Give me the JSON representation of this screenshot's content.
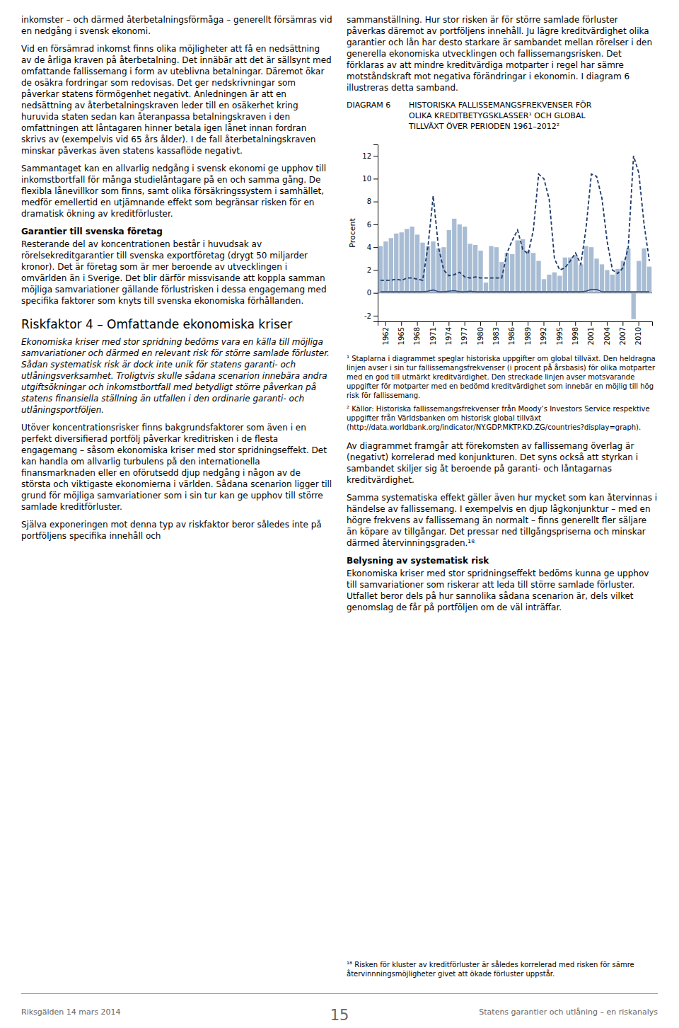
{
  "chart_data": {
    "type": "bar",
    "title": "DIAGRAM 6",
    "subtitle": [
      "HISTORISKA FALLISSEMANGSFREKVENSER FÖR",
      "OLIKA KREDITBETYGSKLASSER¹ OCH GLOBAL",
      "TILLVÄXT ÖVER PERIODEN 1961–2012²"
    ],
    "ylabel": "Procent",
    "categories": [
      null,
      "1962",
      null,
      null,
      "1965",
      null,
      null,
      "1968",
      null,
      null,
      "1971",
      null,
      null,
      "1974",
      null,
      null,
      "1977",
      null,
      null,
      "1980",
      null,
      null,
      "1983",
      null,
      null,
      "1986",
      null,
      null,
      "1989",
      null,
      null,
      "1992",
      null,
      null,
      "1995",
      null,
      null,
      "1998",
      null,
      null,
      "2001",
      null,
      null,
      "2004",
      null,
      null,
      "2007",
      null,
      null,
      "2010",
      null,
      null
    ],
    "series": [
      {
        "type": "bar",
        "color": "#a8bdd4",
        "values": [
          4.1,
          4.5,
          4.8,
          5.2,
          5.3,
          5.6,
          5.8,
          5.1,
          4.4,
          4.1,
          4.5,
          3.9,
          4.0,
          5.5,
          6.5,
          6.0,
          5.8,
          4.3,
          4.2,
          3.7,
          0.9,
          4.1,
          4.0,
          2.7,
          3.5,
          3.4,
          4.6,
          4.7,
          3.7,
          3.5,
          2.8,
          1.2,
          1.6,
          1.8,
          1.5,
          3.1,
          3.1,
          3.3,
          2.5,
          4.1,
          4.0,
          3.0,
          2.5,
          2.0,
          1.6,
          2.1,
          2.8,
          3.9,
          -2.3,
          2.8,
          3.9,
          2.3
        ]
      },
      {
        "type": "line",
        "color": "#2e4a7a",
        "line_style": "solid",
        "values": [
          0.1,
          0.1,
          0.1,
          0.1,
          0.1,
          0.1,
          0.1,
          0.1,
          0.1,
          0.15,
          0.25,
          0.1,
          0.1,
          0.15,
          0.2,
          0.1,
          0.1,
          0.15,
          0.1,
          0.1,
          0.1,
          0.1,
          0.1,
          0.1,
          0.1,
          0.1,
          0.1,
          0.1,
          0.1,
          0.1,
          0.1,
          0.1,
          0.1,
          0.1,
          0.1,
          0.1,
          0.1,
          0.1,
          0.1,
          0.15,
          0.3,
          0.3,
          0.1,
          0.1,
          0.1,
          0.1,
          0.1,
          0.1,
          0.1,
          0.1,
          0.1,
          0.1
        ]
      },
      {
        "type": "line",
        "color": "#1e3a6a",
        "line_style": "dashed",
        "values": [
          1.1,
          1.1,
          1.1,
          1.2,
          1.1,
          1.3,
          1.3,
          1.2,
          1.1,
          4.0,
          8.5,
          4.0,
          2.0,
          1.5,
          1.6,
          1.8,
          1.4,
          1.3,
          1.4,
          1.3,
          1.3,
          1.3,
          1.3,
          1.3,
          3.5,
          4.6,
          5.5,
          3.8,
          3.4,
          5.5,
          10.4,
          10.0,
          8.2,
          3.0,
          2.0,
          2.2,
          2.8,
          3.5,
          2.5,
          5.7,
          10.4,
          10.2,
          8.3,
          4.5,
          2.0,
          1.7,
          2.2,
          4.0,
          12.0,
          10.5,
          6.0,
          2.8
        ]
      }
    ],
    "ylim": [
      -2.5,
      13
    ],
    "yticks": [
      -2,
      0,
      2,
      4,
      6,
      8,
      10,
      12
    ],
    "grid": false,
    "annotations": [
      "¹ Staplarna i diagrammet speglar historiska uppgifter om global tillväxt. Den heldragna linjen avser i sin tur fallissemangsfrekvenser (i procent på årsbasis) för olika motparter med en god till utmärkt kreditvärdighet. Den streckade linjen avser motsvarande uppgifter för motparter med en bedömd kreditvärdighet som innebär en möjlig till hög risk för fallissemang.",
      "² Källor: Historiska fallissemangsfrekvenser från Moody’s Investors Service respektive uppgifter från Världsbanken om historisk global tillväxt (http://data.worldbank.org/indicator/NY.GDP.MKTP.KD.ZG/countries?display=graph)."
    ]
  },
  "page": {
    "left_column": [
      {
        "text": "inkomster – och därmed återbetalningsförmåga – generellt försämras vid en nedgång i svensk ekonomi."
      },
      {
        "text": "Vid en försämrad inkomst finns olika möjligheter att få en nedsättning av de årliga kraven på återbetalning. Det innäbär att det är sällsynt med omfattande fallissemang i form av uteblivna betalningar. Däremot ökar de osäkra fordringar som redovisas. Det ger nedskrivningar som påverkar statens förmögenhet negativt. Anledningen är att en nedsättning av återbetalningskraven leder till en osäkerhet kring huruvida staten sedan kan återanpassa betalningskraven i den omfattningen att låntagaren hinner betala igen lånet innan fordran skrivs av (exempelvis vid 65 års ålder). I de fall återbetalningskraven minskar påverkas även statens kassaflöde negativt."
      },
      {
        "text": "Sammantaget kan en allvarlig nedgång i svensk ekonomi ge upphov till inkomstbortfall för många studielåntagare på en och samma gång. De flexibla lånevillkor som finns, samt olika försäkringssystem i samhället, medför emellertid en utjämnande effekt som begränsar risken för en dramatisk ökning av kreditförluster."
      },
      {
        "heading": "Garantier till svenska företag"
      },
      {
        "text": "Resterande del av koncentrationen består i huvudsak av rörelsekreditgarantier till svenska exportföretag (drygt 50 miljarder kronor). Det är företag som är mer beroende av utvecklingen i omvärlden än i Sverige. Det blir därför missvisande att koppla samman möjliga samvariationer gällande förlustrisken i dessa engagemang med specifika faktorer som knyts till svenska ekonomiska förhållanden."
      },
      {
        "section_heading": "Riskfaktor 4 – Omfattande ekonomiska kriser"
      },
      {
        "lead": "Ekonomiska kriser med stor spridning bedöms vara en källa till möjliga samvariationer och därmed en relevant risk för större samlade förluster. Sådan systematisk risk är dock inte unik för statens garanti- och utlåningsverksamhet. Troligtvis skulle sådana scenarion innebära andra utgiftsökningar och inkomstbortfall med betydligt större påverkan på statens finansiella ställning än utfallen i den ordinarie garanti- och utlåningsportföljen."
      },
      {
        "text": "Utöver koncentrationsrisker finns bakgrundsfaktorer som även i en perfekt diversifierad portfölj påverkar kreditrisken i de flesta engagemang – såsom ekonomiska kriser med stor spridningseffekt. Det kan handla om allvarlig turbulens på den internationella finansmarknaden eller en oförutsedd djup nedgång i någon av de största och viktigaste ekonomierna i världen. Sådana scenarion ligger till grund för möjliga samvariationer som i sin tur kan ge upphov till större samlade kreditförluster."
      },
      {
        "text": "Själva exponeringen mot denna typ av riskfaktor beror således inte på portföljens specifika innehåll och"
      }
    ],
    "right_column_top": [
      {
        "text": "sammanställning. Hur stor risken är för större samlade förluster påverkas däremot av portföljens innehåll. Ju lägre kreditvärdighet olika garantier och lån har desto starkare är sambandet mellan rörelser i den generella ekonomiska utvecklingen och fallissemangsrisken. Det förklaras av att mindre kreditvärdiga motparter i regel har sämre motståndskraft mot negativa förändringar i ekonomin. I diagram 6 illustreras detta samband."
      }
    ],
    "right_column_bottom": [
      {
        "text": "Av diagrammet framgår att förekomsten av fallissemang överlag är (negativt) korrelerad med konjunkturen. Det syns också att styrkan i sambandet skiljer sig åt beroende på garanti- och låntagarnas kreditvärdighet."
      },
      {
        "text": "Samma systematiska effekt gäller även hur mycket som kan återvinnas i händelse av fallissemang. I exempelvis en djup lågkonjunktur – med en högre frekvens av fallissemang än normalt – finns generellt fler säljare än köpare av tillgångar. Det pressar ned tillgångspriserna och minskar därmed återvinningsgraden.¹⁸"
      },
      {
        "heading": "Belysning av systematisk risk"
      },
      {
        "text": "Ekonomiska kriser med stor spridningseffekt bedöms kunna ge upphov till samvariationer som riskerar att leda till större samlade förluster. Utfallet beror dels på hur sannolika sådana scenarion är, dels vilket genomslag de får på portföljen om de väl inträffar."
      }
    ],
    "footnote": "¹⁸ Risken för kluster av kreditförluster är således korrelerad med risken för sämre återvinnningsmöjligheter givet att ökade förluster uppstår.",
    "footer": {
      "left": "Riksgälden 14 mars 2014",
      "page": "15",
      "right": "Statens garantier och utlåning – en riskanalys"
    }
  }
}
